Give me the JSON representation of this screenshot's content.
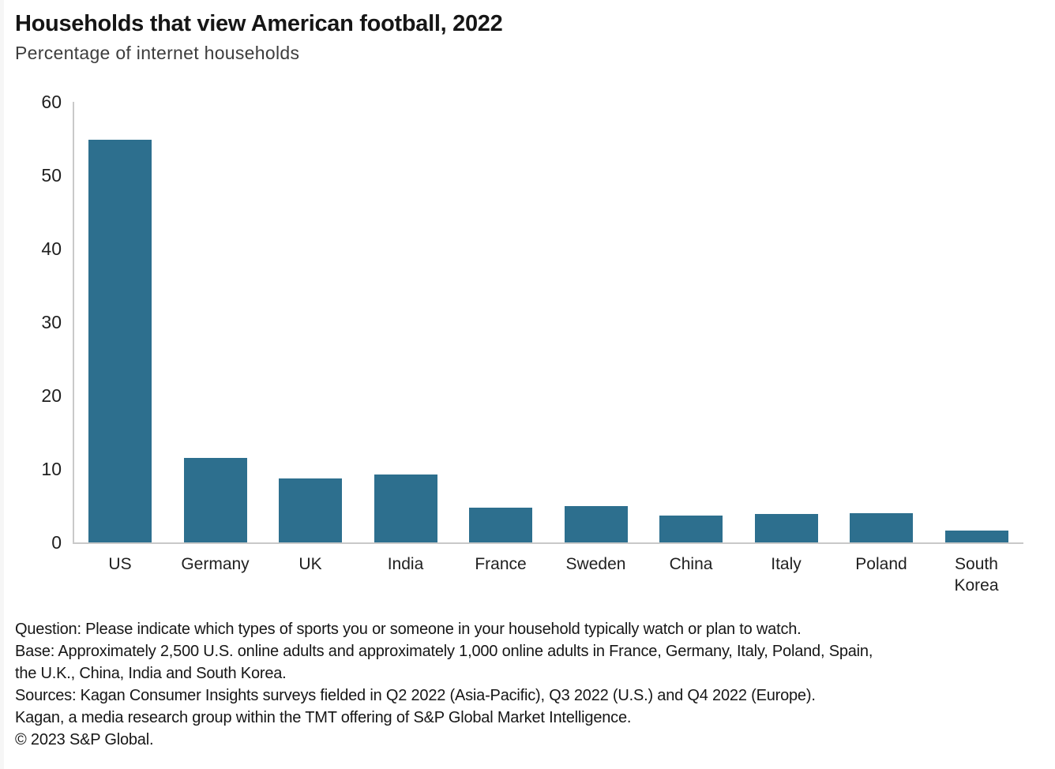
{
  "chart_data": {
    "type": "bar",
    "title": "Households that view American football, 2022",
    "subtitle": "Percentage of internet households",
    "categories": [
      "US",
      "Germany",
      "UK",
      "India",
      "France",
      "Sweden",
      "China",
      "Italy",
      "Poland",
      "South Korea"
    ],
    "values": [
      54.8,
      11.5,
      8.7,
      9.2,
      4.7,
      4.9,
      3.7,
      3.9,
      4.0,
      1.6
    ],
    "xlabel": "",
    "ylabel": "",
    "ylim": [
      0,
      60
    ],
    "yticks": [
      0,
      10,
      20,
      30,
      40,
      50,
      60
    ],
    "grid": false,
    "legend": false,
    "bar_color": "#2d6f8e",
    "axis_color": "#c9c9c9"
  },
  "footer": {
    "lines": [
      "Question: Please indicate which types of sports you or someone in your household typically watch or plan to watch.",
      "Base: Approximately 2,500 U.S. online adults and approximately 1,000 online adults in France, Germany, Italy, Poland, Spain,",
      "the U.K., China, India and South Korea.",
      "Sources: Kagan Consumer Insights surveys fielded in Q2 2022 (Asia-Pacific), Q3 2022 (U.S.) and Q4 2022 (Europe).",
      "Kagan, a media research group within the TMT offering of S&P Global Market Intelligence.",
      "© 2023 S&P Global."
    ]
  }
}
